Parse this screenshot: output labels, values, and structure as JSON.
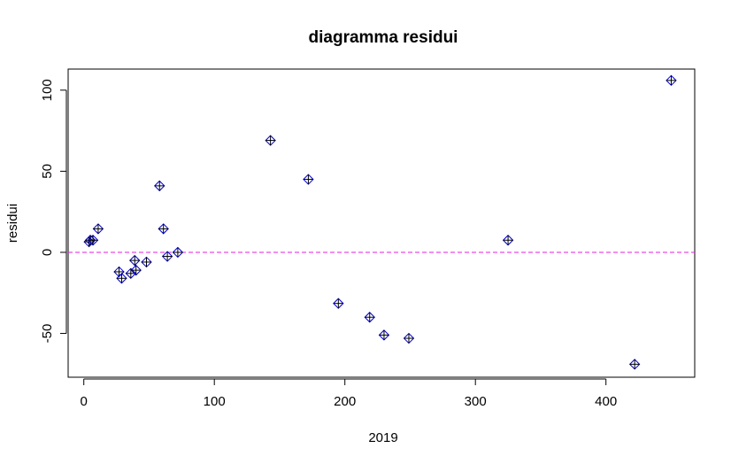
{
  "chart_data": {
    "type": "scatter",
    "title": "diagramma residui",
    "xlabel": "2019",
    "ylabel": "residui",
    "xlim": [
      -12,
      468
    ],
    "ylim": [
      -77,
      113
    ],
    "x_ticks": [
      0,
      100,
      200,
      300,
      400
    ],
    "y_ticks": [
      -50,
      0,
      50,
      100
    ],
    "grid": false,
    "reference_line": {
      "y": 0,
      "style": "dashed",
      "color": "#e61ee6"
    },
    "marker_color": "#0000cc",
    "points": [
      {
        "x": 4,
        "y": 6.5
      },
      {
        "x": 5,
        "y": 7.5
      },
      {
        "x": 7,
        "y": 7.5
      },
      {
        "x": 11,
        "y": 14.5
      },
      {
        "x": 27,
        "y": -12
      },
      {
        "x": 29,
        "y": -16
      },
      {
        "x": 36,
        "y": -13
      },
      {
        "x": 39,
        "y": -5
      },
      {
        "x": 40,
        "y": -11
      },
      {
        "x": 48,
        "y": -6
      },
      {
        "x": 58,
        "y": 41
      },
      {
        "x": 61,
        "y": 14.5
      },
      {
        "x": 64,
        "y": -2.5
      },
      {
        "x": 72,
        "y": 0
      },
      {
        "x": 143,
        "y": 69
      },
      {
        "x": 172,
        "y": 45
      },
      {
        "x": 195,
        "y": -31.5
      },
      {
        "x": 219,
        "y": -40
      },
      {
        "x": 230,
        "y": -51
      },
      {
        "x": 249,
        "y": -53
      },
      {
        "x": 325,
        "y": 7.5
      },
      {
        "x": 422,
        "y": -69
      },
      {
        "x": 450,
        "y": 106
      }
    ]
  }
}
